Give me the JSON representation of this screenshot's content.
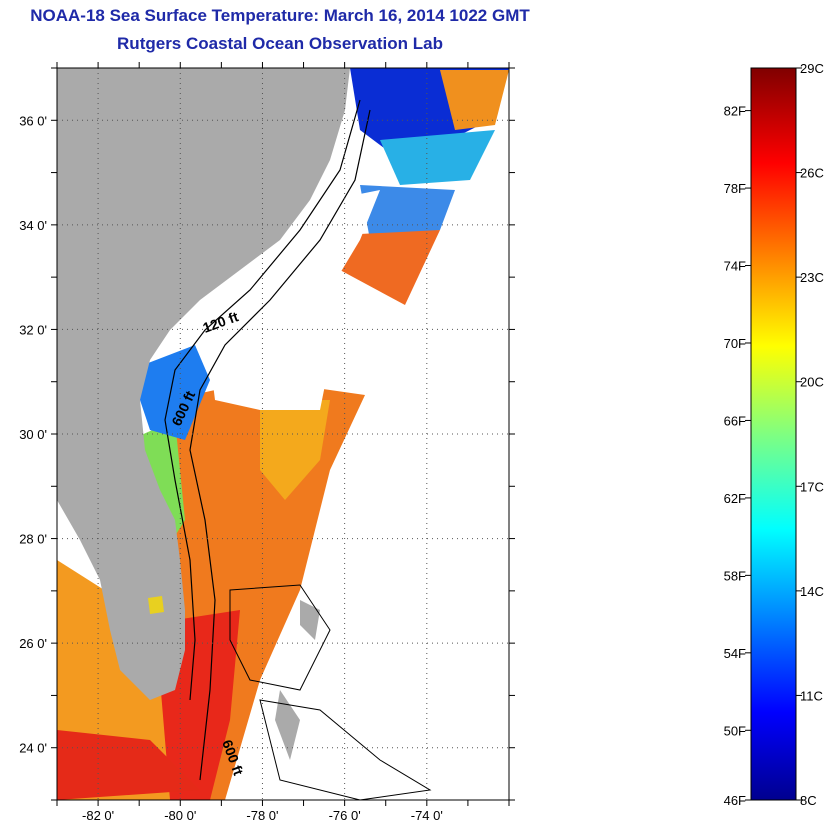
{
  "title": "NOAA-18 Sea Surface Temperature:  March 16, 2014 1022 GMT",
  "subtitle": "Rutgers Coastal Ocean Observation Lab",
  "map": {
    "lon_range": [
      -83.0,
      -72.0
    ],
    "lat_range": [
      23.0,
      37.0
    ],
    "lon_ticks": [
      "-82 0'",
      "-80 0'",
      "-78 0'",
      "-76 0'",
      "-74 0'"
    ],
    "lat_ticks": [
      "36 0'",
      "34 0'",
      "32 0'",
      "30 0'",
      "28 0'",
      "26 0'",
      "24 0'"
    ],
    "grid": "dotted",
    "contour_labels": [
      "120 ft",
      "600 ft",
      "600 ft"
    ],
    "land_color": "#aaaaaa",
    "cloud_color": "#ffffff"
  },
  "colorbar": {
    "scale": "jet",
    "fahrenheit_labels": [
      "82F",
      "78F",
      "74F",
      "70F",
      "66F",
      "62F",
      "58F",
      "54F",
      "50F",
      "46F"
    ],
    "celsius_labels": [
      "29C",
      "26C",
      "23C",
      "20C",
      "17C",
      "14C",
      "11C",
      "8C"
    ],
    "range_celsius": [
      8,
      29
    ]
  }
}
